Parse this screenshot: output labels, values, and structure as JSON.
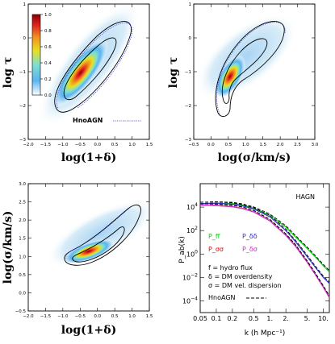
{
  "chart_data": [
    {
      "type": "heatmap",
      "panel": "top-left",
      "xlabel": "log(1+δ)",
      "ylabel": "log τ",
      "xlim": [
        -2.0,
        1.5
      ],
      "ylim": [
        -3,
        1
      ],
      "xticks": [
        "−2.0",
        "−1.5",
        "−1.0",
        "−0.5",
        "0.0",
        "0.5",
        "1.0",
        "1.5"
      ],
      "yticks": [
        "−3",
        "−2",
        "−1",
        "0",
        "1"
      ],
      "colorbar": {
        "ticks": [
          "0.0",
          "0.2",
          "0.4",
          "0.6",
          "0.8",
          "1.0"
        ],
        "range": [
          0,
          1
        ]
      },
      "legend": [
        {
          "label": "HnoAGN",
          "style": "dotted",
          "color": "#3333cc"
        }
      ],
      "peak": {
        "x": -0.4,
        "y": -1.1
      }
    },
    {
      "type": "heatmap",
      "panel": "top-right",
      "xlabel": "log(σ/km/s)",
      "ylabel": "",
      "xlim": [
        -0.5,
        3.0
      ],
      "ylim": [
        -3,
        1
      ],
      "xticks": [
        "−0.5",
        "0.0",
        "0.5",
        "1.0",
        "1.5",
        "2.0",
        "2.5",
        "3.0"
      ],
      "yticks": [
        "−3",
        "−2",
        "−1",
        "0",
        "1"
      ],
      "peak": {
        "x": 0.8,
        "y": -1.5
      }
    },
    {
      "type": "heatmap",
      "panel": "bottom-left",
      "xlabel": "log(1+δ)",
      "ylabel": "log(σ/km/s)",
      "xlim": [
        -2.0,
        1.5
      ],
      "ylim": [
        -0.5,
        3.0
      ],
      "xticks": [
        "−2.0",
        "−1.5",
        "−1.0",
        "−0.5",
        "0.0",
        "0.5",
        "1.0",
        "1.5"
      ],
      "yticks": [
        "−0.5",
        "0.0",
        "0.5",
        "1.0",
        "1.5",
        "2.0",
        "2.5",
        "3.0"
      ],
      "peak": {
        "x": -0.4,
        "y": 0.85
      }
    },
    {
      "type": "line",
      "panel": "bottom-right",
      "title": "HAGN",
      "xlabel": "k (h Mpc⁻¹)",
      "ylabel": "P_ab(k)",
      "xscale": "log",
      "yscale": "log",
      "xlim": [
        0.05,
        13
      ],
      "ylim": [
        1e-05,
        1000000.0
      ],
      "xticks": [
        "0.05",
        "0.1",
        "0.2",
        "0.5",
        "1.",
        "2.",
        "5.",
        "10."
      ],
      "yticks": [
        "10^{-4}",
        "10^{-2}",
        "10^{0}",
        "10^{2}",
        "10^{4}"
      ],
      "series": [
        {
          "name": "P_ff",
          "color": "#00cc00",
          "x": [
            0.05,
            0.1,
            0.2,
            0.3,
            0.5,
            1,
            2,
            3,
            5,
            7,
            10,
            13
          ],
          "y": [
            20000,
            22000,
            20000,
            15000,
            8000,
            2000,
            200,
            30,
            3,
            0.6,
            0.1,
            0.03
          ]
        },
        {
          "name": "P_δδ",
          "color": "#3333cc",
          "x": [
            0.05,
            0.1,
            0.2,
            0.3,
            0.5,
            1,
            2,
            3,
            5,
            7,
            10,
            13
          ],
          "y": [
            20000,
            21000,
            18000,
            13000,
            7000,
            1500,
            100,
            12,
            0.6,
            0.08,
            0.01,
            0.003
          ]
        },
        {
          "name": "P_σσ",
          "color": "#ff0000",
          "x": [
            0.05,
            0.1,
            0.2,
            0.3,
            0.5,
            1,
            2,
            3,
            5,
            7,
            10,
            13
          ],
          "y": [
            15000,
            14000,
            11000,
            8000,
            4000,
            700,
            40,
            5,
            0.2,
            0.02,
            0.0015,
            0.0002
          ]
        },
        {
          "name": "P_δσ",
          "color": "#cc33cc",
          "x": [
            0.05,
            0.1,
            0.2,
            0.3,
            0.5,
            1,
            2,
            3,
            5,
            7,
            10,
            13
          ],
          "y": [
            15000,
            14000,
            11000,
            8000,
            4000,
            700,
            40,
            5,
            0.2,
            0.02,
            0.0015,
            0.0002
          ]
        }
      ],
      "legend": [
        {
          "label": "HnoAGN",
          "style": "dashed",
          "color": "#000000"
        }
      ],
      "annotations": [
        "f = hydro flux",
        "δ = DM overdensity",
        "σ = DM vel. dispersion"
      ]
    }
  ],
  "colors": {
    "scale": [
      "#ffffff",
      "#d8ecf8",
      "#5ab4f0",
      "#7fe0d0",
      "#e8e020",
      "#f09020",
      "#e02020",
      "#8b0000"
    ]
  }
}
